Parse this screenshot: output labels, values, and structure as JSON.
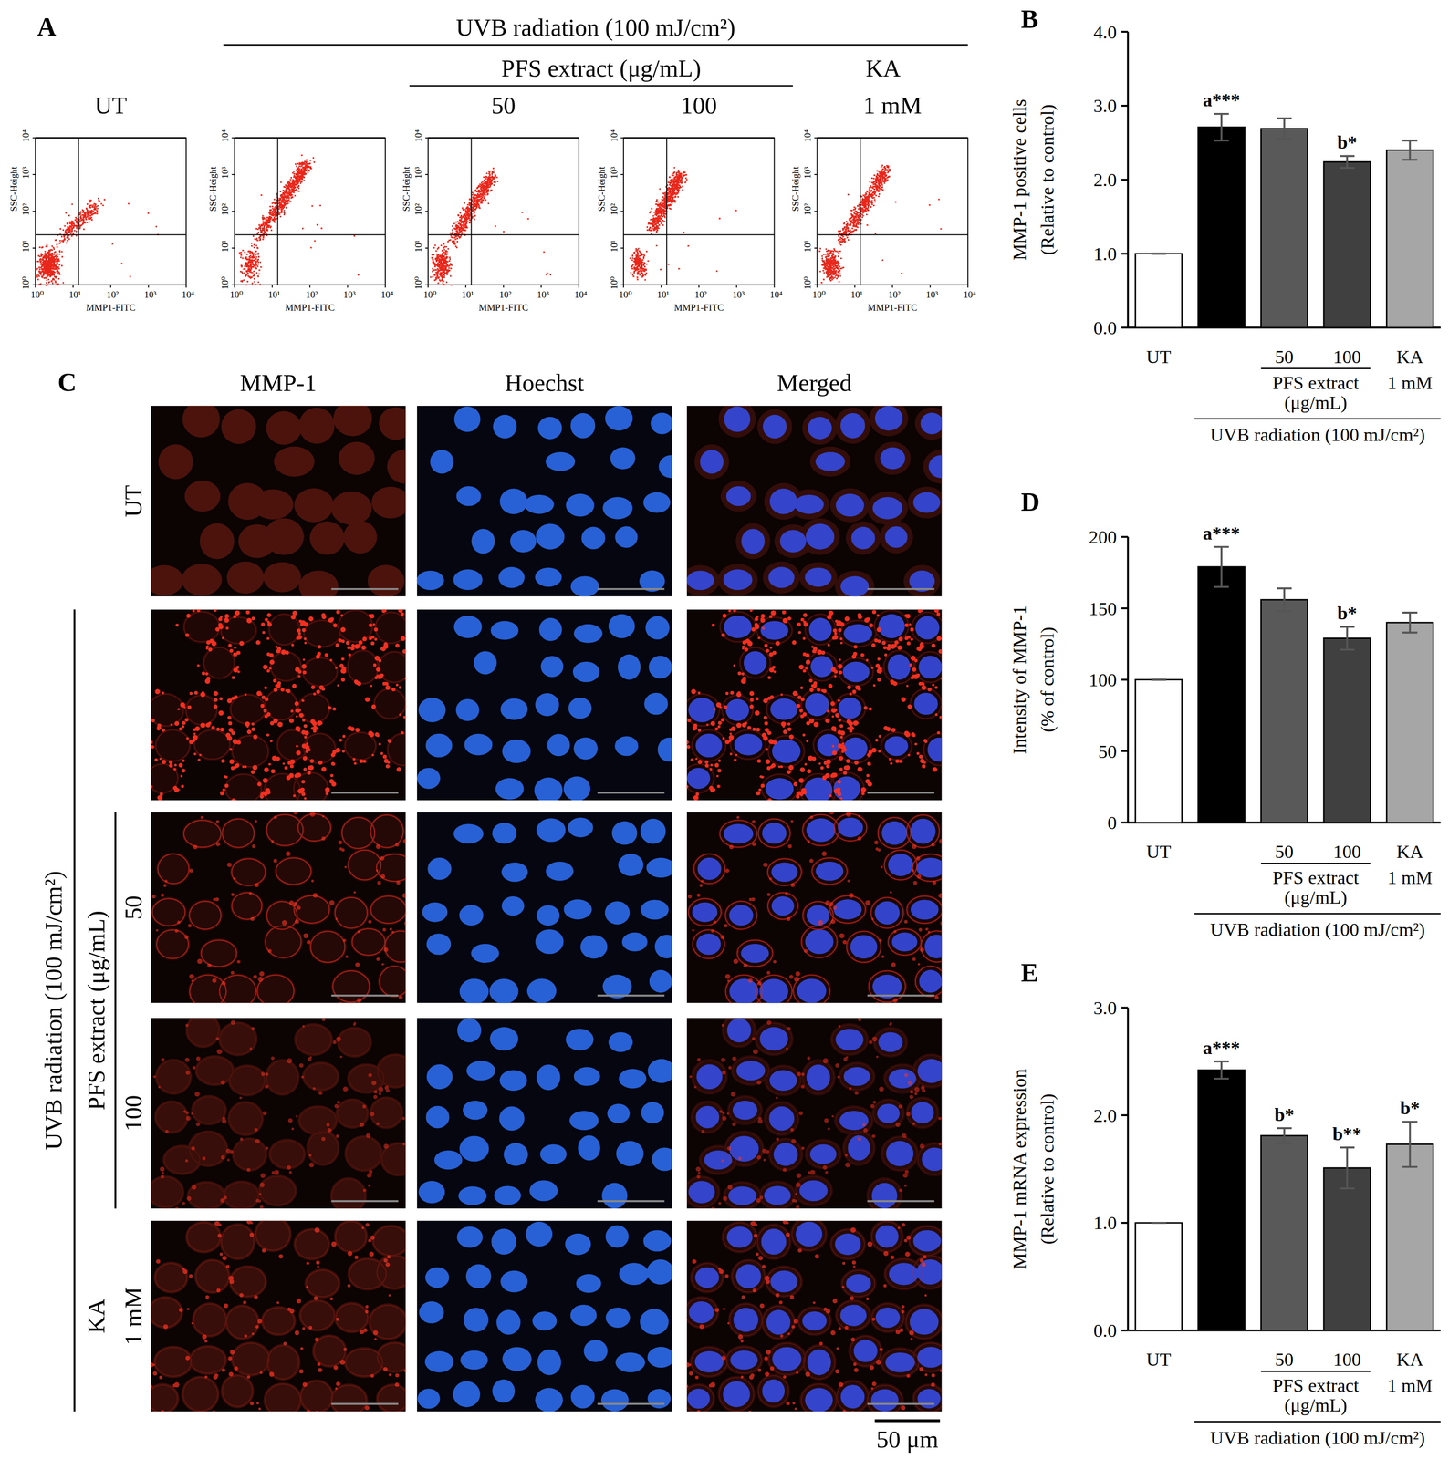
{
  "figure": {
    "panel_labels": [
      "A",
      "B",
      "C",
      "D",
      "E"
    ],
    "panel_a": {
      "headers": [
        {
          "text": "UVB radiation (100 mJ/cm²)",
          "from": 1,
          "to": 4
        },
        {
          "text": "PFS extract (μg/mL)",
          "from": 2,
          "to": 3
        },
        {
          "text": "KA",
          "from": 4,
          "to": 4
        }
      ],
      "columns": [
        "UT",
        null,
        "50",
        "100",
        "1 mM"
      ],
      "xlabel": "MMP1-FITC",
      "ylabel": "SSC-Height",
      "log": true,
      "xlim": [
        1,
        10000
      ],
      "ylim": [
        1,
        10000
      ],
      "xticks": [
        {
          "value": 1,
          "label": "10⁰"
        },
        {
          "value": 10,
          "label": "10¹"
        },
        {
          "value": 100,
          "label": "10²"
        },
        {
          "value": 1000,
          "label": "10³"
        },
        {
          "value": 10000,
          "label": "10⁴"
        }
      ],
      "yticks": [
        {
          "value": 1,
          "label": "10⁰"
        },
        {
          "value": 10,
          "label": "10¹"
        },
        {
          "value": 100,
          "label": "10²"
        },
        {
          "value": 1000,
          "label": "10³"
        },
        {
          "value": 10000,
          "label": "10⁴"
        }
      ],
      "gate": {
        "x": 14,
        "y": 23
      }
    },
    "panel_c": {
      "columns": [
        "MMP-1",
        "Hoechst",
        "Merged"
      ],
      "rows": [
        "UT",
        null,
        "50",
        "100",
        "1 mM"
      ],
      "groups": [
        {
          "text": "UVB radiation (100 mJ/cm²)",
          "from": 1,
          "to": 4
        },
        {
          "text": "PFS extract (μg/mL)",
          "from": 2,
          "to": 3
        },
        {
          "text": "KA",
          "from": 4,
          "to": 4
        }
      ],
      "scale_bar": "50 μm"
    }
  },
  "chart_data": [
    {
      "type": "bar",
      "ylabel": [
        "MMP-1 positive cells",
        "(Relative to control)"
      ],
      "categories": [
        "UT",
        null,
        "50",
        "100",
        "KA"
      ],
      "values": [
        1.0,
        2.71,
        2.69,
        2.24,
        2.4
      ],
      "errors": [
        0,
        0.18,
        0.14,
        0.08,
        0.13
      ],
      "annotations": [
        null,
        "a***",
        null,
        "b*",
        null
      ],
      "colors": [
        "#ffffff",
        "#000000",
        "#595959",
        "#404040",
        "#a6a6a6"
      ],
      "ylim": [
        0,
        4
      ],
      "yticks": [
        {
          "value": 0,
          "label": "0.0"
        },
        {
          "value": 1,
          "label": "1.0"
        },
        {
          "value": 2,
          "label": "2.0"
        },
        {
          "value": 3,
          "label": "3.0"
        },
        {
          "value": 4,
          "label": "4.0"
        }
      ],
      "sublabels": [
        {
          "text": [
            "PFS extract",
            "(μg/mL)"
          ],
          "from": 2,
          "to": 3
        },
        {
          "text": [
            "1 mM"
          ],
          "from": 4,
          "to": 4
        }
      ],
      "group": {
        "text": "UVB radiation (100 mJ/cm²)",
        "from": 1,
        "to": 4
      }
    },
    {
      "type": "bar",
      "ylabel": [
        "Intensity of MMP-1",
        "(% of control)"
      ],
      "categories": [
        "UT",
        null,
        "50",
        "100",
        "KA"
      ],
      "values": [
        100,
        179,
        156,
        129,
        140
      ],
      "errors": [
        0,
        14,
        8,
        8,
        7
      ],
      "annotations": [
        null,
        "a***",
        null,
        "b*",
        null
      ],
      "colors": [
        "#ffffff",
        "#000000",
        "#595959",
        "#404040",
        "#a6a6a6"
      ],
      "ylim": [
        0,
        200
      ],
      "yticks": [
        0,
        50,
        100,
        150,
        200
      ],
      "sublabels": [
        {
          "text": [
            "PFS extract",
            "(μg/mL)"
          ],
          "from": 2,
          "to": 3
        },
        {
          "text": [
            "1 mM"
          ],
          "from": 4,
          "to": 4
        }
      ],
      "group": {
        "text": "UVB radiation (100 mJ/cm²)",
        "from": 1,
        "to": 4
      }
    },
    {
      "type": "bar",
      "ylabel": [
        "MMP-1 mRNA expression",
        "(Relative to control)"
      ],
      "categories": [
        "UT",
        null,
        "50",
        "100",
        "KA"
      ],
      "values": [
        1.0,
        2.42,
        1.81,
        1.51,
        1.73
      ],
      "errors": [
        0,
        0.08,
        0.07,
        0.19,
        0.21
      ],
      "annotations": [
        null,
        "a***",
        "b*",
        "b**",
        "b*"
      ],
      "colors": [
        "#ffffff",
        "#000000",
        "#595959",
        "#404040",
        "#a6a6a6"
      ],
      "ylim": [
        0,
        3
      ],
      "yticks": [
        {
          "value": 0,
          "label": "0.0"
        },
        {
          "value": 1,
          "label": "1.0"
        },
        {
          "value": 2,
          "label": "2.0"
        },
        {
          "value": 3,
          "label": "3.0"
        }
      ],
      "sublabels": [
        {
          "text": [
            "PFS extract",
            "(μg/mL)"
          ],
          "from": 2,
          "to": 3
        },
        {
          "text": [
            "1 mM"
          ],
          "from": 4,
          "to": 4
        }
      ],
      "group": {
        "text": "UVB radiation (100 mJ/cm²)",
        "from": 1,
        "to": 4
      }
    }
  ]
}
